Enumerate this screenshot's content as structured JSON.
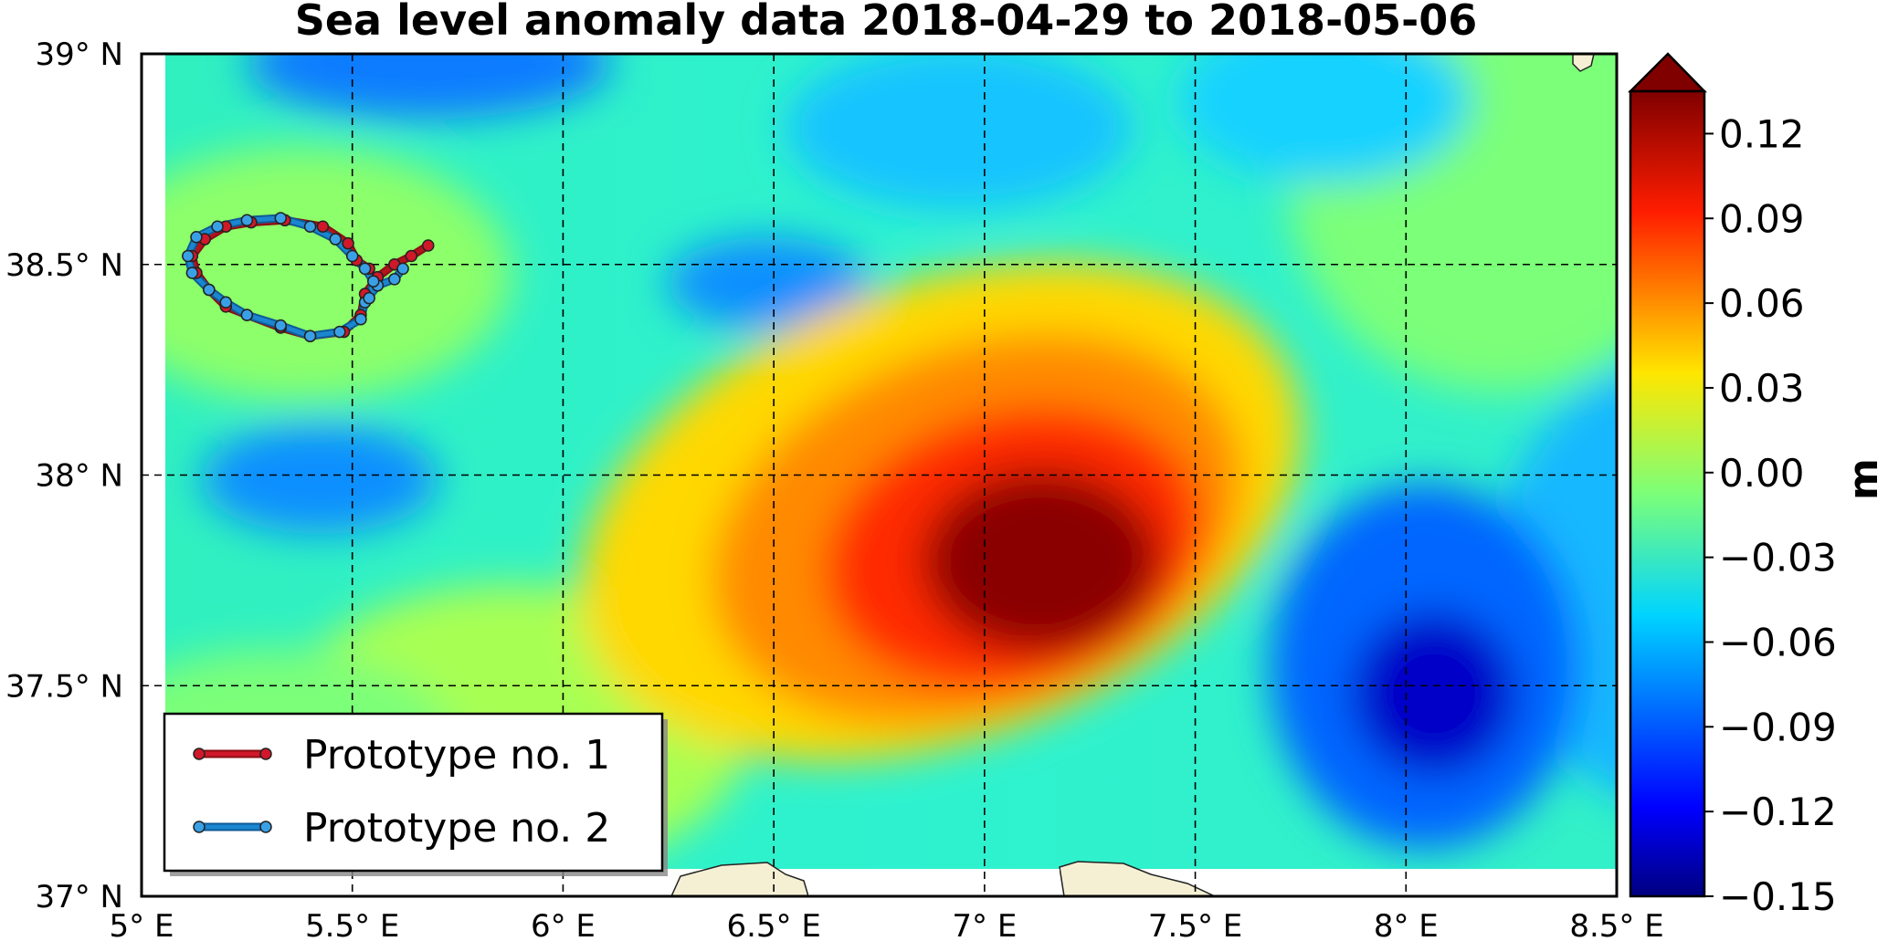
{
  "chart_data": {
    "type": "heatmap",
    "title": "Sea level anomaly data 2018-04-29 to 2018-05-06",
    "x_ticks": [
      "5° E",
      "5.5° E",
      "6° E",
      "6.5° E",
      "7° E",
      "7.5° E",
      "8° E",
      "8.5° E"
    ],
    "x_tick_values": [
      5,
      5.5,
      6,
      6.5,
      7,
      7.5,
      8,
      8.5
    ],
    "y_ticks": [
      "39° N",
      "38.5° N",
      "38° N",
      "37.5° N",
      "37° N"
    ],
    "y_tick_values": [
      39,
      38.5,
      38,
      37.5,
      37
    ],
    "xlim": [
      5,
      8.5
    ],
    "ylim": [
      37,
      39
    ],
    "grid": true,
    "colorbar": {
      "label": "m",
      "vmin": -0.15,
      "vmax": 0.135,
      "extend": "max",
      "ticks": [
        "0.12",
        "0.09",
        "0.06",
        "0.03",
        "0.00",
        "−0.03",
        "−0.06",
        "−0.09",
        "−0.12",
        "−0.15"
      ],
      "tick_values": [
        0.12,
        0.09,
        0.06,
        0.03,
        0.0,
        -0.03,
        -0.06,
        -0.09,
        -0.12,
        -0.15
      ],
      "over_color": "#800000",
      "colormap": "jet"
    },
    "field_features": [
      {
        "kind": "high",
        "lon": 7.15,
        "lat": 37.78,
        "value": 0.14
      },
      {
        "kind": "low",
        "lon": 8.07,
        "lat": 37.5,
        "value": -0.14
      },
      {
        "kind": "low",
        "lon": 5.35,
        "lat": 37.97,
        "value": -0.08
      },
      {
        "kind": "low",
        "lon": 6.5,
        "lat": 38.45,
        "value": -0.08
      },
      {
        "kind": "low",
        "lon": 5.6,
        "lat": 38.97,
        "value": -0.09
      }
    ],
    "legend": {
      "position": "lower-left",
      "entries": [
        {
          "label": "Prototype no. 1",
          "color": "#b5121b"
        },
        {
          "label": "Prototype no. 2",
          "color": "#1a86d0"
        }
      ]
    },
    "series": [
      {
        "name": "Prototype no. 1",
        "color": "#b5121b",
        "points": [
          [
            5.68,
            38.545
          ],
          [
            5.64,
            38.52
          ],
          [
            5.6,
            38.5
          ],
          [
            5.56,
            38.47
          ],
          [
            5.53,
            38.43
          ],
          [
            5.52,
            38.38
          ],
          [
            5.48,
            38.34
          ],
          [
            5.4,
            38.33
          ],
          [
            5.33,
            38.35
          ],
          [
            5.25,
            38.38
          ],
          [
            5.2,
            38.4
          ],
          [
            5.16,
            38.44
          ],
          [
            5.13,
            38.48
          ],
          [
            5.12,
            38.52
          ],
          [
            5.15,
            38.56
          ],
          [
            5.2,
            38.59
          ],
          [
            5.26,
            38.6
          ],
          [
            5.34,
            38.605
          ],
          [
            5.43,
            38.59
          ],
          [
            5.49,
            38.55
          ],
          [
            5.51,
            38.51
          ],
          [
            5.54,
            38.49
          ]
        ]
      },
      {
        "name": "Prototype no. 2",
        "color": "#1a86d0",
        "points": [
          [
            5.62,
            38.49
          ],
          [
            5.6,
            38.465
          ],
          [
            5.56,
            38.45
          ],
          [
            5.53,
            38.41
          ],
          [
            5.52,
            38.37
          ],
          [
            5.47,
            38.34
          ],
          [
            5.4,
            38.33
          ],
          [
            5.33,
            38.355
          ],
          [
            5.25,
            38.38
          ],
          [
            5.2,
            38.41
          ],
          [
            5.16,
            38.44
          ],
          [
            5.12,
            38.48
          ],
          [
            5.11,
            38.52
          ],
          [
            5.13,
            38.565
          ],
          [
            5.18,
            38.59
          ],
          [
            5.25,
            38.605
          ],
          [
            5.33,
            38.61
          ],
          [
            5.4,
            38.59
          ],
          [
            5.46,
            38.56
          ],
          [
            5.5,
            38.52
          ],
          [
            5.53,
            38.49
          ],
          [
            5.55,
            38.46
          ],
          [
            5.54,
            38.42
          ]
        ]
      }
    ]
  }
}
